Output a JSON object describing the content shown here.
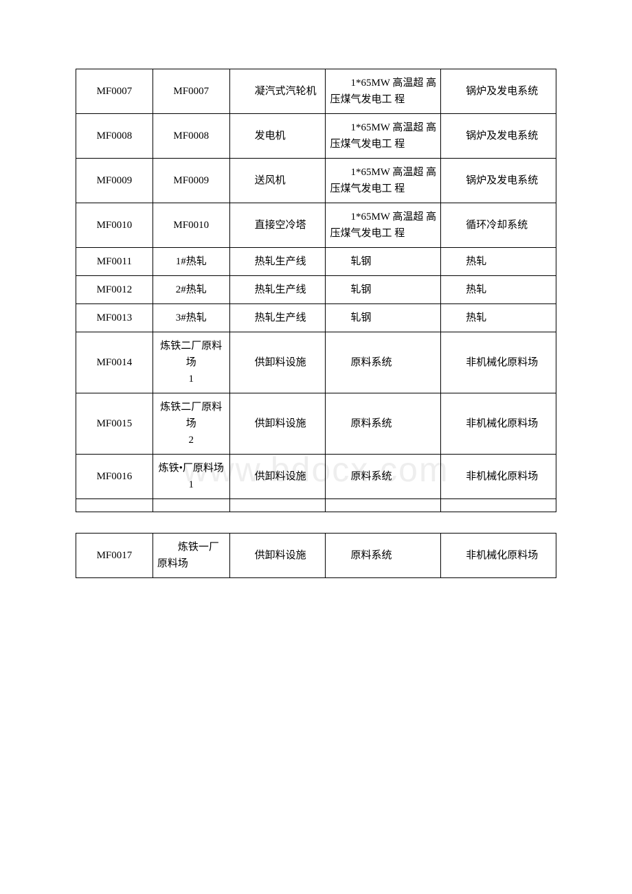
{
  "watermark": "www.bdocx.com",
  "columns": [
    {
      "key": "c1",
      "width": "16%"
    },
    {
      "key": "c2",
      "width": "16%"
    },
    {
      "key": "c3",
      "width": "20%"
    },
    {
      "key": "c4",
      "width": "24%"
    },
    {
      "key": "c5",
      "width": "24%"
    }
  ],
  "table1": {
    "rows": [
      {
        "c1": "MF0007",
        "c2": "MF0007",
        "c3": "凝汽式汽轮机",
        "c4": "1*65MW 高温超 高压煤气发电工 程",
        "c5": "锅炉及发电系统"
      },
      {
        "c1": "MF0008",
        "c2": "MF0008",
        "c3": "发电机",
        "c4": "1*65MW 高温超 高压煤气发电工 程",
        "c5": "锅炉及发电系统"
      },
      {
        "c1": "MF0009",
        "c2": "MF0009",
        "c3": "送风机",
        "c4": "1*65MW 高温超 高压煤气发电工 程",
        "c5": "锅炉及发电系统"
      },
      {
        "c1": "MF0010",
        "c2": "MF0010",
        "c3": "直接空冷塔",
        "c4": "1*65MW 高温超 高压煤气发电工 程",
        "c5": "循环冷却系统"
      },
      {
        "c1": "MF0011",
        "c2": "1#热轧",
        "c3": "热轧生产线",
        "c4": "轧钢",
        "c5": "热轧"
      },
      {
        "c1": "MF0012",
        "c2": "2#热轧",
        "c3": "热轧生产线",
        "c4": "轧钢",
        "c5": "热轧"
      },
      {
        "c1": "MF0013",
        "c2": "3#热轧",
        "c3": "热轧生产线",
        "c4": "轧钢",
        "c5": "热轧"
      },
      {
        "c1": "MF0014",
        "c2": "炼铁二厂原料场\n1",
        "c3": "供卸料设施",
        "c4": "原料系统",
        "c5": "非机械化原料场"
      },
      {
        "c1": "MF0015",
        "c2": "炼铁二厂原料场\n2",
        "c3": "供卸料设施",
        "c4": "原料系统",
        "c5": "非机械化原料场"
      },
      {
        "c1": "MF0016",
        "c2": "炼铁•厂原料场\n1",
        "c3": "供卸料设施",
        "c4": "原料系统",
        "c5": "非机械化原料场"
      }
    ]
  },
  "table2": {
    "rows": [
      {
        "c1": "MF0017",
        "c2": "炼铁一厂原料场",
        "c3": "供卸料设施",
        "c4": "原料系统",
        "c5": "非机械化原料场"
      }
    ]
  },
  "style": {
    "border_color": "#000000",
    "text_color": "#000000",
    "background_color": "#ffffff",
    "font_size": 15,
    "watermark_color": "#eeeeee",
    "watermark_fontsize": 50
  }
}
